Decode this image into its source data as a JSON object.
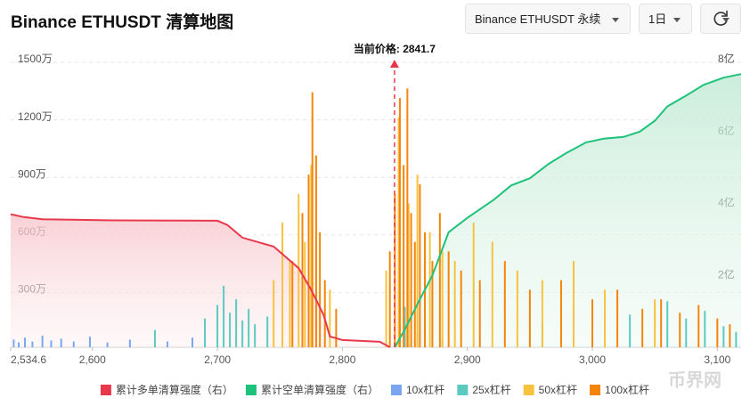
{
  "header": {
    "title": "Binance ETHUSDT 清算地图",
    "symbol_select": "Binance ETHUSDT 永续",
    "period_select": "1日"
  },
  "chart_data": {
    "type": "liquidation-map",
    "xlim": [
      2534.6,
      3119
    ],
    "xticks": [
      {
        "value": 2534.6,
        "label": "2,534.6"
      },
      {
        "value": 2600,
        "label": "2,600"
      },
      {
        "value": 2700,
        "label": "2,700"
      },
      {
        "value": 2800,
        "label": "2,800"
      },
      {
        "value": 2900,
        "label": "2,900"
      },
      {
        "value": 3000,
        "label": "3,000"
      },
      {
        "value": 3100,
        "label": "3,100"
      }
    ],
    "ylim": [
      0,
      15000000
    ],
    "yticks": [
      {
        "value": 3000000,
        "label": "300万"
      },
      {
        "value": 6000000,
        "label": "600万"
      },
      {
        "value": 9000000,
        "label": "900万"
      },
      {
        "value": 12000000,
        "label": "1200万"
      },
      {
        "value": 15000000,
        "label": "1500万"
      }
    ],
    "y2lim": [
      0,
      800000000
    ],
    "y2ticks": [
      {
        "value": 200000000,
        "label": "2亿"
      },
      {
        "value": 400000000,
        "label": "4亿"
      },
      {
        "value": 600000000,
        "label": "6亿"
      },
      {
        "value": 800000000,
        "label": "8亿"
      }
    ],
    "grid": true,
    "current_price": {
      "value": 2841.7,
      "label": "当前价格: 2841.7"
    },
    "series": [
      {
        "name": "累计多单清算强度（右）",
        "color": "#e8394c",
        "kind": "line",
        "axis": "y2",
        "x": [
          2534.6,
          2545,
          2560,
          2620,
          2700,
          2708,
          2720,
          2745,
          2765,
          2775,
          2785,
          2790,
          2800,
          2830,
          2838
        ],
        "values": [
          370000000,
          362000000,
          356000000,
          353000000,
          352000000,
          340000000,
          305000000,
          280000000,
          220000000,
          160000000,
          90000000,
          30000000,
          20000000,
          15000000,
          0
        ]
      },
      {
        "name": "累计空单清算强度（右）",
        "color": "#1ec27a",
        "kind": "line",
        "axis": "y2",
        "x": [
          2842,
          2850,
          2860,
          2872,
          2885,
          2900,
          2921,
          2935,
          2950,
          2965,
          2979,
          2995,
          3009,
          3025,
          3038,
          3050,
          3060,
          3075,
          3089,
          3105,
          3119
        ],
        "values": [
          0,
          50000000,
          120000000,
          200000000,
          320000000,
          360000000,
          410000000,
          450000000,
          470000000,
          510000000,
          540000000,
          570000000,
          580000000,
          585000000,
          600000000,
          630000000,
          670000000,
          700000000,
          730000000,
          750000000,
          760000000
        ]
      },
      {
        "name": "10x杠杆",
        "color": "#7aa6f0",
        "kind": "bar",
        "x": [
          2537,
          2541,
          2546,
          2552,
          2560,
          2567,
          2575,
          2585,
          2598,
          2612,
          2630,
          2660,
          2680,
          2860,
          2880
        ],
        "values": [
          400000,
          250000,
          500000,
          300000,
          600000,
          350000,
          450000,
          300000,
          550000,
          250000,
          400000,
          300000,
          500000,
          600000,
          450000
        ]
      },
      {
        "name": "25x杠杆",
        "color": "#5ccac0",
        "kind": "bar",
        "x": [
          2650,
          2690,
          2700,
          2705,
          2710,
          2715,
          2720,
          2725,
          2730,
          2740,
          2850,
          2960,
          3030,
          3060,
          3075,
          3090,
          3105,
          3115
        ],
        "values": [
          900000,
          1500000,
          2200000,
          3200000,
          1800000,
          2500000,
          1400000,
          2000000,
          1200000,
          1600000,
          2100000,
          1300000,
          1700000,
          2400000,
          1500000,
          1900000,
          1100000,
          800000
        ]
      },
      {
        "name": "50x杠杆",
        "color": "#f8c23e",
        "kind": "bar",
        "x": [
          2745,
          2752,
          2758,
          2765,
          2770,
          2775,
          2790,
          2835,
          2845,
          2853,
          2860,
          2870,
          2880,
          2890,
          2905,
          2920,
          2940,
          2960,
          2985,
          3010,
          3050
        ],
        "values": [
          3500000,
          6500000,
          4500000,
          8000000,
          5500000,
          9500000,
          3000000,
          4000000,
          12000000,
          7500000,
          9000000,
          6000000,
          5000000,
          4500000,
          6500000,
          5500000,
          4000000,
          3500000,
          4500000,
          3000000,
          2500000
        ]
      },
      {
        "name": "100x杠杆",
        "color": "#f5850a",
        "kind": "bar",
        "x": [
          2760,
          2768,
          2773,
          2776,
          2779,
          2782,
          2786,
          2795,
          2838,
          2842,
          2846,
          2849,
          2852,
          2855,
          2858,
          2862,
          2866,
          2872,
          2878,
          2885,
          2895,
          2910,
          2930,
          2950,
          2975,
          3000,
          3020,
          3040,
          3055,
          3070,
          3085,
          3100,
          3110
        ],
        "values": [
          4500000,
          7000000,
          9000000,
          13300000,
          10000000,
          6000000,
          3500000,
          2000000,
          5000000,
          8000000,
          13000000,
          9500000,
          13500000,
          7000000,
          5500000,
          8500000,
          6000000,
          4500000,
          7000000,
          5000000,
          4000000,
          3500000,
          4500000,
          3000000,
          3500000,
          2500000,
          3000000,
          2000000,
          2500000,
          1800000,
          2200000,
          1500000,
          1200000
        ]
      }
    ],
    "watermark": "币界网"
  }
}
